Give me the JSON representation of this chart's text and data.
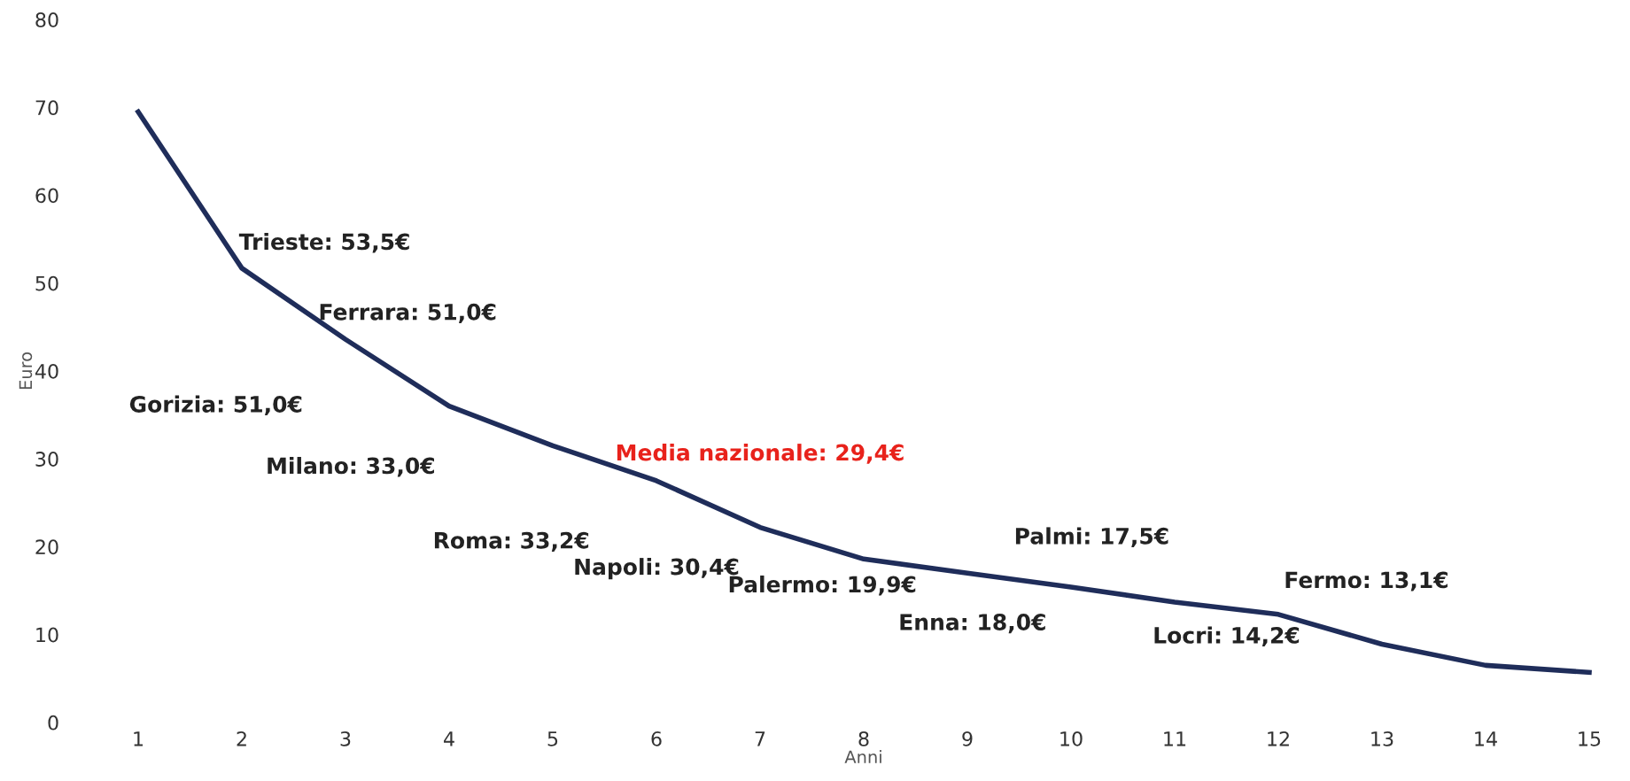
{
  "chart_data": {
    "type": "line",
    "xlabel": "Anni",
    "ylabel": "Euro",
    "x": [
      1,
      2,
      3,
      4,
      5,
      6,
      7,
      8,
      9,
      10,
      11,
      12,
      13,
      14,
      15
    ],
    "series": [
      {
        "color": "#1f2d5a",
        "values": [
          69.5,
          51.7,
          43.6,
          36.0,
          31.5,
          27.5,
          22.2,
          18.6,
          17.0,
          15.4,
          13.7,
          12.3,
          8.9,
          6.5,
          5.7
        ]
      }
    ],
    "xlim": [
      1,
      15
    ],
    "xticks": [
      1,
      2,
      3,
      4,
      5,
      6,
      7,
      8,
      9,
      10,
      11,
      12,
      13,
      14,
      15
    ],
    "ylim": [
      0,
      80
    ],
    "yticks": [
      0,
      10,
      20,
      30,
      40,
      50,
      60,
      70,
      80
    ],
    "grid": false,
    "marker": "none",
    "line_style": "solid",
    "annotations": [
      "Trieste: 53,5€",
      "Ferrara: 51,0€",
      "Gorizia: 51,0€",
      "Milano: 33,0€",
      "Media nazionale: 29,4€",
      "Roma: 33,2€",
      "Napoli: 30,4€",
      "Palermo: 19,9€",
      "Palmi: 17,5€",
      "Enna: 18,0€",
      "Fermo: 13,1€",
      "Locri: 14,2€"
    ]
  }
}
